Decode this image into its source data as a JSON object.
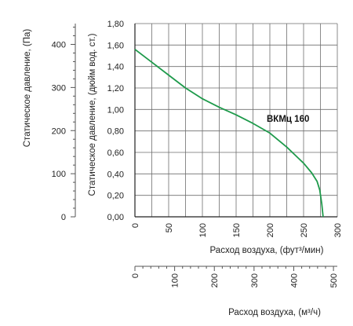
{
  "chart_data": {
    "type": "line",
    "x_axis_primary": {
      "label": "Расход воздуха, (фут³/мин)",
      "ticks": [
        0,
        50,
        100,
        150,
        200,
        250,
        300
      ],
      "range": [
        0,
        300
      ]
    },
    "x_axis_secondary": {
      "label": "Расход воздуха, (м³/ч)",
      "ticks": [
        0,
        100,
        200,
        300,
        400,
        500
      ],
      "range": [
        0,
        509.7
      ]
    },
    "y_axis_inch": {
      "label": "Статическое давление, (дюйм вод. ст.)",
      "ticks": [
        "0,00",
        "0,20",
        "0,40",
        "0,60",
        "0,80",
        "1,00",
        "1,20",
        "1,40",
        "1,60",
        "1,80"
      ],
      "range": [
        0,
        1.8
      ]
    },
    "y_axis_pa": {
      "label": "Статическое давление, (Па)",
      "ticks": [
        0,
        100,
        200,
        300,
        400
      ],
      "range": [
        0,
        448.3
      ]
    },
    "grid": true,
    "series": [
      {
        "name": "ВКМц 160",
        "color": "#1e9a4b",
        "x": [
          0,
          25,
          50,
          75,
          100,
          125,
          150,
          175,
          200,
          225,
          250,
          262,
          270,
          274,
          277,
          279
        ],
        "y": [
          1.56,
          1.44,
          1.32,
          1.2,
          1.1,
          1.02,
          0.95,
          0.87,
          0.78,
          0.65,
          0.5,
          0.41,
          0.33,
          0.25,
          0.12,
          0.0
        ]
      }
    ]
  }
}
